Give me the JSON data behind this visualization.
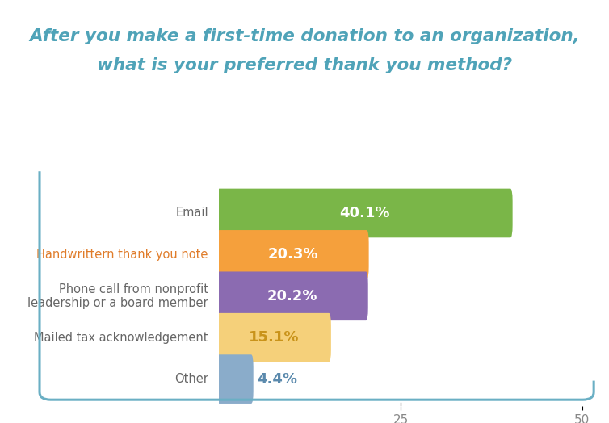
{
  "title_line1": "After you make a first-time donation to an organization,",
  "title_line2": "what is your preferred thank you method?",
  "categories": [
    "Email",
    "Handwrittern thank you note",
    "Phone call from nonprofit\nleadership or a board member",
    "Mailed tax acknowledgement",
    "Other"
  ],
  "values": [
    40.1,
    20.3,
    20.2,
    15.1,
    4.4
  ],
  "labels": [
    "40.1%",
    "20.3%",
    "20.2%",
    "15.1%",
    "4.4%"
  ],
  "bar_colors": [
    "#7ab648",
    "#f5a03c",
    "#8b6bb1",
    "#f5d07a",
    "#8aacca"
  ],
  "label_colors": [
    "#ffffff",
    "#ffffff",
    "#ffffff",
    "#c9931a",
    "#5b8aad"
  ],
  "label_inside": [
    true,
    true,
    true,
    true,
    false
  ],
  "xlim": [
    0,
    52
  ],
  "xticks": [
    25,
    50
  ],
  "background_color": "#ffffff",
  "title_color": "#4fa3b8",
  "bracket_color": "#6aafc4",
  "category_color_default": "#666666",
  "category_color_highlight": "#e07c2a",
  "category_highlight_indices": [
    1
  ],
  "bar_height": 0.58,
  "title_fontsize": 15.5,
  "label_fontsize": 13,
  "category_fontsize": 10.5,
  "tick_fontsize": 11,
  "tick_color": "#888888"
}
